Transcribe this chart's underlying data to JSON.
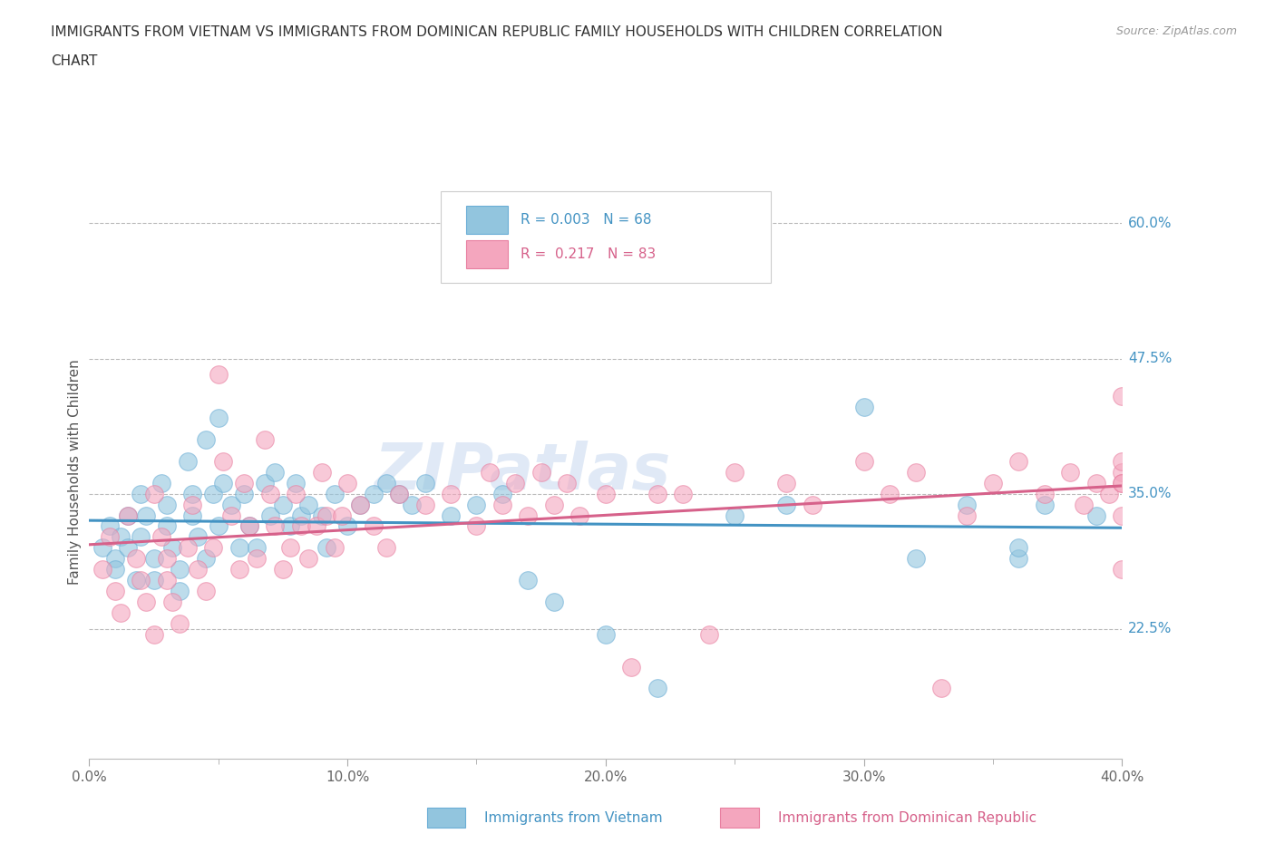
{
  "title_line1": "IMMIGRANTS FROM VIETNAM VS IMMIGRANTS FROM DOMINICAN REPUBLIC FAMILY HOUSEHOLDS WITH CHILDREN CORRELATION",
  "title_line2": "CHART",
  "source": "Source: ZipAtlas.com",
  "xlabel_blue": "Immigrants from Vietnam",
  "xlabel_pink": "Immigrants from Dominican Republic",
  "ylabel": "Family Households with Children",
  "x_min": 0.0,
  "x_max": 0.4,
  "y_min": 0.105,
  "y_max": 0.635,
  "yticks": [
    0.225,
    0.35,
    0.475,
    0.6
  ],
  "ytick_labels": [
    "22.5%",
    "35.0%",
    "47.5%",
    "60.0%"
  ],
  "xtick_labels": [
    "0.0%",
    "",
    "10.0%",
    "",
    "20.0%",
    "",
    "30.0%",
    "",
    "40.0%"
  ],
  "xticks": [
    0.0,
    0.05,
    0.1,
    0.15,
    0.2,
    0.25,
    0.3,
    0.35,
    0.4
  ],
  "R_blue": 0.003,
  "N_blue": 68,
  "R_pink": 0.217,
  "N_pink": 83,
  "blue_color": "#92c5de",
  "pink_color": "#f4a6be",
  "blue_scatter_edge": "#6baed6",
  "pink_scatter_edge": "#e87fa0",
  "blue_line_color": "#4393c3",
  "pink_line_color": "#d6618a",
  "watermark_color": "#c8d8ef",
  "watermark": "ZIPatlas",
  "blue_x": [
    0.005,
    0.008,
    0.01,
    0.01,
    0.012,
    0.015,
    0.015,
    0.018,
    0.02,
    0.02,
    0.022,
    0.025,
    0.025,
    0.028,
    0.03,
    0.03,
    0.032,
    0.035,
    0.035,
    0.038,
    0.04,
    0.04,
    0.042,
    0.045,
    0.045,
    0.048,
    0.05,
    0.05,
    0.052,
    0.055,
    0.058,
    0.06,
    0.062,
    0.065,
    0.068,
    0.07,
    0.072,
    0.075,
    0.078,
    0.08,
    0.082,
    0.085,
    0.09,
    0.092,
    0.095,
    0.1,
    0.105,
    0.11,
    0.115,
    0.12,
    0.125,
    0.13,
    0.14,
    0.15,
    0.16,
    0.17,
    0.18,
    0.2,
    0.22,
    0.25,
    0.27,
    0.3,
    0.32,
    0.34,
    0.36,
    0.36,
    0.37,
    0.39
  ],
  "blue_y": [
    0.3,
    0.32,
    0.29,
    0.28,
    0.31,
    0.33,
    0.3,
    0.27,
    0.35,
    0.31,
    0.33,
    0.29,
    0.27,
    0.36,
    0.32,
    0.34,
    0.3,
    0.28,
    0.26,
    0.38,
    0.35,
    0.33,
    0.31,
    0.29,
    0.4,
    0.35,
    0.32,
    0.42,
    0.36,
    0.34,
    0.3,
    0.35,
    0.32,
    0.3,
    0.36,
    0.33,
    0.37,
    0.34,
    0.32,
    0.36,
    0.33,
    0.34,
    0.33,
    0.3,
    0.35,
    0.32,
    0.34,
    0.35,
    0.36,
    0.35,
    0.34,
    0.36,
    0.33,
    0.34,
    0.35,
    0.27,
    0.25,
    0.22,
    0.17,
    0.33,
    0.34,
    0.43,
    0.29,
    0.34,
    0.29,
    0.3,
    0.34,
    0.33
  ],
  "pink_x": [
    0.005,
    0.008,
    0.01,
    0.012,
    0.015,
    0.018,
    0.02,
    0.022,
    0.025,
    0.025,
    0.028,
    0.03,
    0.03,
    0.032,
    0.035,
    0.038,
    0.04,
    0.042,
    0.045,
    0.048,
    0.05,
    0.052,
    0.055,
    0.058,
    0.06,
    0.062,
    0.065,
    0.068,
    0.07,
    0.072,
    0.075,
    0.078,
    0.08,
    0.082,
    0.085,
    0.088,
    0.09,
    0.092,
    0.095,
    0.098,
    0.1,
    0.105,
    0.11,
    0.115,
    0.12,
    0.13,
    0.14,
    0.15,
    0.155,
    0.16,
    0.165,
    0.17,
    0.175,
    0.18,
    0.185,
    0.19,
    0.2,
    0.21,
    0.22,
    0.23,
    0.24,
    0.25,
    0.27,
    0.28,
    0.3,
    0.31,
    0.32,
    0.33,
    0.34,
    0.35,
    0.36,
    0.37,
    0.38,
    0.385,
    0.39,
    0.395,
    0.4,
    0.4,
    0.4,
    0.4,
    0.4,
    0.4,
    0.4
  ],
  "pink_y": [
    0.28,
    0.31,
    0.26,
    0.24,
    0.33,
    0.29,
    0.27,
    0.25,
    0.22,
    0.35,
    0.31,
    0.29,
    0.27,
    0.25,
    0.23,
    0.3,
    0.34,
    0.28,
    0.26,
    0.3,
    0.46,
    0.38,
    0.33,
    0.28,
    0.36,
    0.32,
    0.29,
    0.4,
    0.35,
    0.32,
    0.28,
    0.3,
    0.35,
    0.32,
    0.29,
    0.32,
    0.37,
    0.33,
    0.3,
    0.33,
    0.36,
    0.34,
    0.32,
    0.3,
    0.35,
    0.34,
    0.35,
    0.32,
    0.37,
    0.34,
    0.36,
    0.33,
    0.37,
    0.34,
    0.36,
    0.33,
    0.35,
    0.19,
    0.35,
    0.35,
    0.22,
    0.37,
    0.36,
    0.34,
    0.38,
    0.35,
    0.37,
    0.17,
    0.33,
    0.36,
    0.38,
    0.35,
    0.37,
    0.34,
    0.36,
    0.35,
    0.37,
    0.44,
    0.36,
    0.38,
    0.36,
    0.33,
    0.28
  ]
}
